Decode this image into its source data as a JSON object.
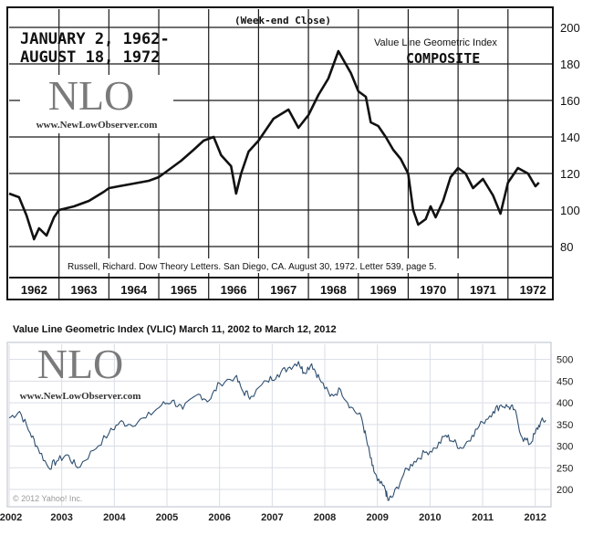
{
  "colors": {
    "top_line": "#111111",
    "bottom_line": "#2f4f6f",
    "grid_top": "#1a1a1a",
    "grid_bottom": "#d9dde6",
    "watermark": "#7a7a7a"
  },
  "chart_data": [
    {
      "type": "line",
      "handwritten_title": [
        "JANUARY 2, 1962-",
        "AUGUST 18, 1972"
      ],
      "subtitle": "(Week-end Close)",
      "title": "Value Line Geometric Index",
      "series_label": "COMPOSITE",
      "citation": "Russell, Richard. Dow Theory Letters. San Diego, CA. August 30, 1972. Letter 539, page 5.",
      "watermark": {
        "logo": "NLO",
        "url": "www.NewLowObserver.com"
      },
      "x_ticks": [
        "1962",
        "1963",
        "1964",
        "1965",
        "1966",
        "1967",
        "1968",
        "1969",
        "1970",
        "1971",
        "1972"
      ],
      "y_ticks": [
        80,
        100,
        120,
        140,
        160,
        180,
        200
      ],
      "xlim": [
        1962.0,
        1972.9
      ],
      "ylim": [
        65,
        210
      ],
      "grid": true,
      "series": [
        {
          "x": [
            1962.0,
            1962.2,
            1962.35,
            1962.5,
            1962.6,
            1962.75,
            1962.9,
            1963.0,
            1963.3,
            1963.6,
            1963.9,
            1964.0,
            1964.4,
            1964.8,
            1965.0,
            1965.2,
            1965.45,
            1965.7,
            1965.9,
            1966.1,
            1966.25,
            1966.45,
            1966.55,
            1966.65,
            1966.8,
            1967.0,
            1967.3,
            1967.6,
            1967.8,
            1968.0,
            1968.2,
            1968.4,
            1968.6,
            1968.85,
            1969.0,
            1969.15,
            1969.25,
            1969.4,
            1969.55,
            1969.7,
            1969.85,
            1970.0,
            1970.1,
            1970.2,
            1970.35,
            1970.45,
            1970.55,
            1970.7,
            1970.85,
            1971.0,
            1971.15,
            1971.3,
            1971.5,
            1971.7,
            1971.85,
            1972.0,
            1972.2,
            1972.4,
            1972.55,
            1972.62
          ],
          "values": [
            109,
            107,
            97,
            84,
            90,
            86,
            96,
            100,
            102,
            105,
            110,
            112,
            114,
            116,
            118,
            122,
            127,
            133,
            138,
            140,
            130,
            124,
            109,
            120,
            132,
            138,
            150,
            155,
            145,
            152,
            163,
            172,
            187,
            175,
            165,
            162,
            148,
            146,
            140,
            133,
            128,
            120,
            100,
            92,
            95,
            102,
            96,
            105,
            118,
            123,
            120,
            112,
            117,
            108,
            98,
            115,
            123,
            120,
            113,
            115
          ]
        }
      ]
    },
    {
      "type": "line",
      "title": "Value Line Geometric Index (VLIC)  March 11, 2002 to March 12, 2012",
      "watermark": {
        "logo": "NLO",
        "url": "www.NewLowObserver.com"
      },
      "credit": "© 2012 Yahoo! Inc.",
      "x_ticks": [
        "2002",
        "2003",
        "2004",
        "2005",
        "2006",
        "2007",
        "2008",
        "2009",
        "2010",
        "2011",
        "2012"
      ],
      "y_ticks": [
        200,
        250,
        300,
        350,
        400,
        450,
        500
      ],
      "xlim": [
        2002.0,
        2012.3
      ],
      "ylim": [
        160,
        535
      ],
      "grid": true,
      "series": [
        {
          "x": [
            2002.0,
            2002.2,
            2002.4,
            2002.55,
            2002.75,
            2002.9,
            2003.1,
            2003.3,
            2003.6,
            2003.9,
            2004.1,
            2004.3,
            2004.6,
            2004.9,
            2005.1,
            2005.3,
            2005.6,
            2005.8,
            2006.0,
            2006.3,
            2006.45,
            2006.6,
            2006.9,
            2007.1,
            2007.3,
            2007.5,
            2007.6,
            2007.75,
            2007.9,
            2008.1,
            2008.3,
            2008.5,
            2008.7,
            2008.8,
            2008.9,
            2009.0,
            2009.15,
            2009.2,
            2009.3,
            2009.5,
            2009.7,
            2009.9,
            2010.1,
            2010.3,
            2010.45,
            2010.6,
            2010.8,
            2011.0,
            2011.2,
            2011.35,
            2011.5,
            2011.6,
            2011.75,
            2011.9,
            2012.0,
            2012.1,
            2012.2
          ],
          "values": [
            365,
            380,
            330,
            295,
            250,
            265,
            280,
            250,
            290,
            330,
            355,
            350,
            365,
            395,
            405,
            385,
            420,
            405,
            445,
            460,
            425,
            415,
            450,
            465,
            480,
            495,
            470,
            490,
            455,
            415,
            430,
            390,
            365,
            310,
            255,
            220,
            200,
            175,
            185,
            235,
            265,
            285,
            295,
            325,
            310,
            295,
            325,
            355,
            380,
            395,
            390,
            385,
            320,
            305,
            330,
            355,
            360
          ]
        }
      ]
    }
  ]
}
